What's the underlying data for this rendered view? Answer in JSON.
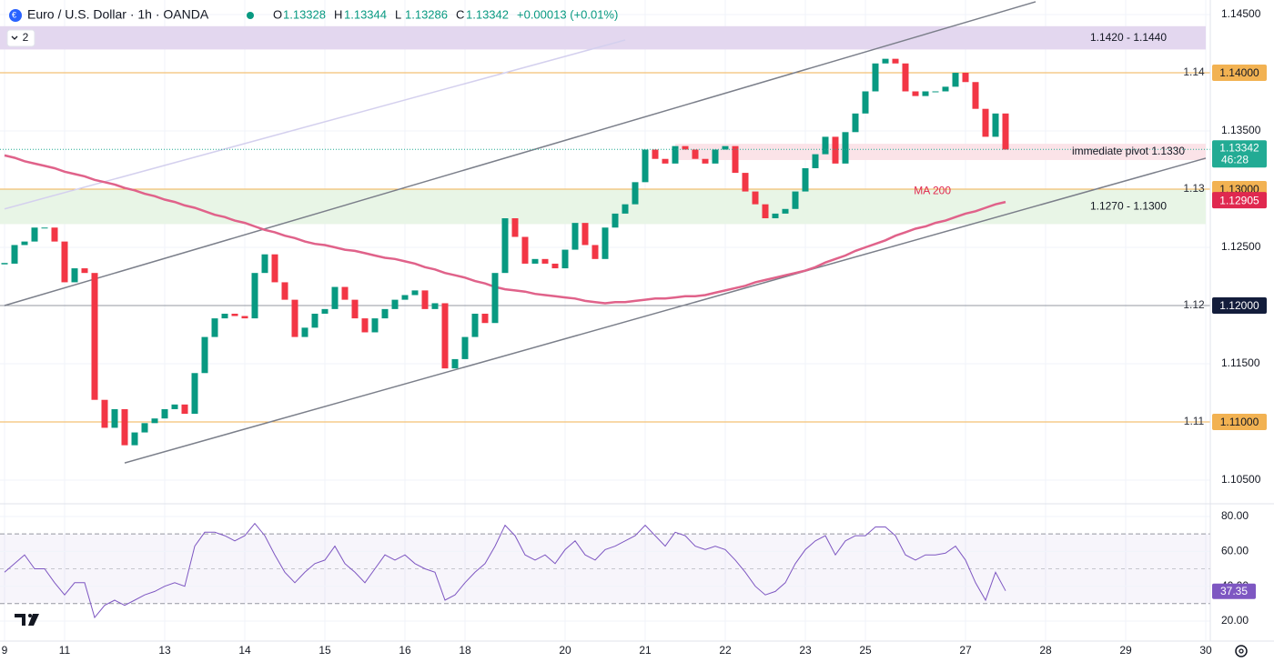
{
  "chart_data": {
    "type": "candlestick",
    "title": "Euro / U.S. Dollar · 1h · OANDA",
    "ohlc_legend": [
      {
        "key": "O",
        "value": 1.13328
      },
      {
        "key": "H",
        "value": 1.13344
      },
      {
        "key": "L",
        "value": 1.13286
      },
      {
        "key": "C",
        "value": 1.13342
      }
    ],
    "change": "+0.00013 (+0.01%)",
    "indicator_count": 2,
    "up_color": "#089981",
    "down_color": "#f23645",
    "categories": [
      "9",
      null,
      null,
      null,
      null,
      null,
      "11",
      null,
      null,
      null,
      null,
      null,
      null,
      null,
      null,
      null,
      "13",
      null,
      null,
      null,
      null,
      null,
      null,
      null,
      "14",
      null,
      null,
      null,
      null,
      null,
      null,
      null,
      "15",
      null,
      null,
      null,
      null,
      null,
      null,
      null,
      "16",
      null,
      null,
      null,
      null,
      null,
      "18",
      null,
      null,
      null,
      null,
      null,
      null,
      null,
      null,
      null,
      "20",
      null,
      null,
      null,
      null,
      null,
      null,
      null,
      "21",
      null,
      null,
      null,
      null,
      null,
      null,
      null,
      "22",
      null,
      null,
      null,
      null,
      null,
      null,
      null,
      "23",
      null,
      null,
      null,
      null,
      null,
      "25",
      null,
      null,
      null,
      null,
      null,
      null,
      null,
      null,
      null,
      "27",
      null,
      null,
      null,
      null,
      null,
      null,
      null,
      "28",
      null,
      null,
      null,
      null,
      null,
      null,
      null,
      "29",
      null,
      null,
      null,
      null,
      null,
      null,
      null,
      "30"
    ],
    "values": [
      1.1236,
      1.1252,
      1.1255,
      1.1267,
      1.1267,
      1.1255,
      1.122,
      1.1232,
      1.1228,
      1.1119,
      1.1095,
      1.1111,
      1.108,
      1.1091,
      1.1099,
      1.1103,
      1.1111,
      1.1115,
      1.1107,
      1.1142,
      1.1173,
      1.1189,
      1.1193,
      1.1191,
      1.1189,
      1.1228,
      1.1244,
      1.122,
      1.1205,
      1.1173,
      1.1181,
      1.1193,
      1.1197,
      1.1216,
      1.1205,
      1.1189,
      1.1177,
      1.1189,
      1.1197,
      1.1205,
      1.1209,
      1.1213,
      1.1197,
      1.1202,
      1.1146,
      1.1154,
      1.1173,
      1.1193,
      1.1185,
      1.1228,
      1.1275,
      1.1259,
      1.1236,
      1.124,
      1.1236,
      1.1232,
      1.1248,
      1.1271,
      1.1252,
      1.124,
      1.1267,
      1.1279,
      1.1287,
      1.1306,
      1.1334,
      1.1326,
      1.1322,
      1.1337,
      1.1334,
      1.1326,
      1.1322,
      1.1334,
      1.1337,
      1.1314,
      1.1298,
      1.1287,
      1.1275,
      1.1279,
      1.1283,
      1.1298,
      1.1318,
      1.133,
      1.1345,
      1.1322,
      1.1349,
      1.1365,
      1.1384,
      1.1408,
      1.1412,
      1.1408,
      1.1384,
      1.138,
      1.1384,
      1.1384,
      1.1388,
      1.14,
      1.1392,
      1.1369,
      1.1345,
      1.1365,
      1.1334,
      null,
      null,
      null,
      null,
      null,
      null,
      null,
      null,
      null,
      null,
      null,
      null,
      null,
      null,
      null,
      null,
      null,
      null,
      null,
      null
    ],
    "series": [
      {
        "name": "MA 200",
        "color": "#e0628a",
        "badge": 1.12905,
        "badge_color": "#e0284f",
        "values": [
          1.1329,
          1.1327,
          1.1324,
          1.1322,
          1.132,
          1.1318,
          1.1315,
          1.1313,
          1.1311,
          1.1308,
          1.1306,
          1.1304,
          1.1301,
          1.1299,
          1.1296,
          1.1294,
          1.1291,
          1.1289,
          1.1286,
          1.1284,
          1.1281,
          1.1278,
          1.1276,
          1.1273,
          1.1271,
          1.1268,
          1.1265,
          1.1263,
          1.126,
          1.1258,
          1.1255,
          1.1253,
          1.1252,
          1.125,
          1.1248,
          1.1247,
          1.1245,
          1.1243,
          1.1241,
          1.124,
          1.1238,
          1.1236,
          1.1233,
          1.1231,
          1.1228,
          1.1226,
          1.1224,
          1.1221,
          1.1219,
          1.1216,
          1.1214,
          1.1213,
          1.1212,
          1.121,
          1.1209,
          1.1208,
          1.1207,
          1.1206,
          1.1204,
          1.1203,
          1.1202,
          1.1203,
          1.1203,
          1.1204,
          1.1205,
          1.1206,
          1.1206,
          1.1207,
          1.1208,
          1.1208,
          1.1209,
          1.1211,
          1.1213,
          1.1215,
          1.1217,
          1.122,
          1.1222,
          1.1224,
          1.1226,
          1.1228,
          1.123,
          1.1233,
          1.1237,
          1.124,
          1.1243,
          1.1247,
          1.125,
          1.1253,
          1.1256,
          1.126,
          1.1263,
          1.1266,
          1.1268,
          1.1271,
          1.1273,
          1.1276,
          1.1279,
          1.1281,
          1.1284,
          1.1287,
          1.1289,
          null,
          null,
          null,
          null,
          null,
          null,
          null,
          null,
          null,
          null,
          null,
          null,
          null,
          null,
          null,
          null,
          null,
          null,
          null,
          null
        ]
      }
    ],
    "ylim": [
      1.10305,
      1.14625
    ],
    "yticks": [
      {
        "value": 1.145,
        "label": "1.14500"
      },
      {
        "value": 1.135,
        "label": "1.13500"
      },
      {
        "value": 1.125,
        "label": "1.12500"
      },
      {
        "value": 1.115,
        "label": "1.11500"
      },
      {
        "value": 1.105,
        "label": "1.10500"
      }
    ],
    "grid": true,
    "levels": [
      {
        "value": 1.14,
        "label": "1.14",
        "badge": "1.14000",
        "color": "#f2b252",
        "text_color": "#131722"
      },
      {
        "value": 1.13,
        "label": "1.13",
        "badge": "1.13000",
        "color": "#f2b252",
        "text_color": "#131722"
      },
      {
        "value": 1.12,
        "label": "1.12",
        "badge": "1.12000",
        "color": "#131d3b",
        "text_color": "#ffffff"
      },
      {
        "value": 1.11,
        "label": "1.11",
        "badge": "1.11000",
        "color": "#f2b252",
        "text_color": "#131722"
      }
    ],
    "zones": [
      {
        "range": [
          1.142,
          1.144
        ],
        "label": "1.1420 - 1.1440",
        "color": "#e3d7ef",
        "start": 0
      },
      {
        "range": [
          1.127,
          1.13
        ],
        "label": "1.1270 - 1.1300",
        "color": "#e8f5e6",
        "start": 0
      },
      {
        "range": [
          1.1325,
          1.1339
        ],
        "label": "immediate pivot 1.1330",
        "color": "#fbe3e8",
        "start": 67
      }
    ],
    "trendlines": [
      {
        "start": [
          0,
          1.12
        ],
        "end": [
          103,
          1.1461
        ],
        "color": "#7b7f8a"
      },
      {
        "start": [
          12,
          1.10648
        ],
        "end": [
          120,
          1.13266
        ],
        "color": "#7b7f8a"
      },
      {
        "start": [
          0,
          1.1283
        ],
        "end": [
          62,
          1.14281
        ],
        "color": "#d4d0ee"
      }
    ],
    "last_price_color": "#22ab94",
    "countdown": "46:28",
    "rsi": {
      "color": "#7e57c2",
      "values": [
        48,
        53,
        58,
        50,
        50,
        42,
        35,
        42,
        42,
        22,
        29,
        32,
        29,
        32,
        35,
        37,
        40,
        42,
        40,
        63,
        71,
        71,
        69,
        66,
        69,
        76,
        69,
        58,
        48,
        42,
        48,
        53,
        55,
        63,
        53,
        48,
        42,
        50,
        58,
        55,
        58,
        53,
        50,
        48,
        32,
        35,
        42,
        48,
        53,
        63,
        75,
        69,
        58,
        55,
        58,
        53,
        61,
        66,
        58,
        55,
        61,
        63,
        66,
        69,
        75,
        69,
        63,
        71,
        69,
        63,
        61,
        63,
        61,
        55,
        48,
        40,
        35,
        37,
        42,
        53,
        61,
        66,
        69,
        58,
        66,
        69,
        69,
        74,
        74,
        69,
        58,
        55,
        58,
        58,
        59,
        63,
        55,
        42,
        32,
        48,
        37.35,
        null,
        null,
        null,
        null,
        null,
        null,
        null,
        null,
        null,
        null,
        null,
        null,
        null,
        null,
        null,
        null,
        null,
        null,
        null,
        null
      ],
      "ylim": [
        8.5,
        86.8
      ],
      "yticks": [
        {
          "value": 80,
          "label": "80.00"
        },
        {
          "value": 60,
          "label": "60.00"
        },
        {
          "value": 40,
          "label": "40.00"
        },
        {
          "value": 20,
          "label": "20.00"
        }
      ],
      "levels": [
        70,
        50,
        30
      ]
    }
  }
}
